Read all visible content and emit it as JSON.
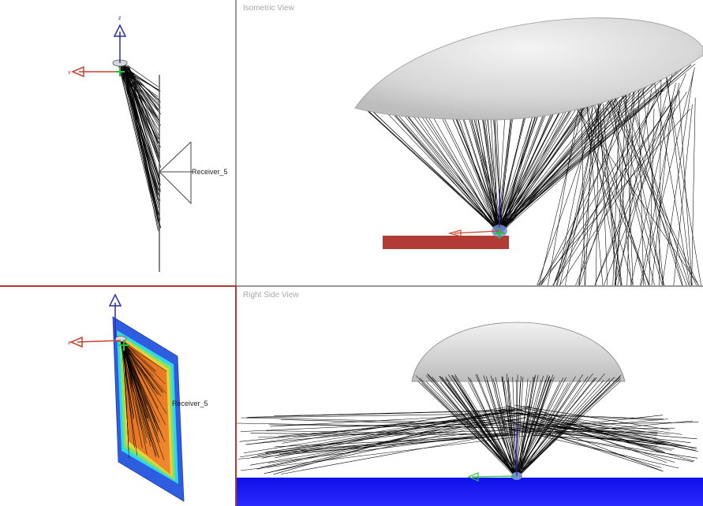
{
  "views": {
    "top_left": {
      "label": "",
      "receiver_label": "Receiver_5"
    },
    "top_right": {
      "label": "Isometric View"
    },
    "bottom_left": {
      "label": "",
      "receiver_label": "Receiver_5"
    },
    "bottom_right": {
      "label": "Right Side View"
    }
  },
  "axes": {
    "z": "z",
    "x": "x"
  },
  "colors": {
    "ray": "#000000",
    "axis_z": "#2b2ba8",
    "axis_x": "#c8402f",
    "axis_y": "#22c33a",
    "receiver_plate": "#b23b35",
    "receiver_floor": "#1a1aff",
    "lens": "#e6e6e6",
    "active_viewport_border": "#b03a35"
  },
  "icons": [
    "axis-triad-icon",
    "receiver-icon"
  ]
}
